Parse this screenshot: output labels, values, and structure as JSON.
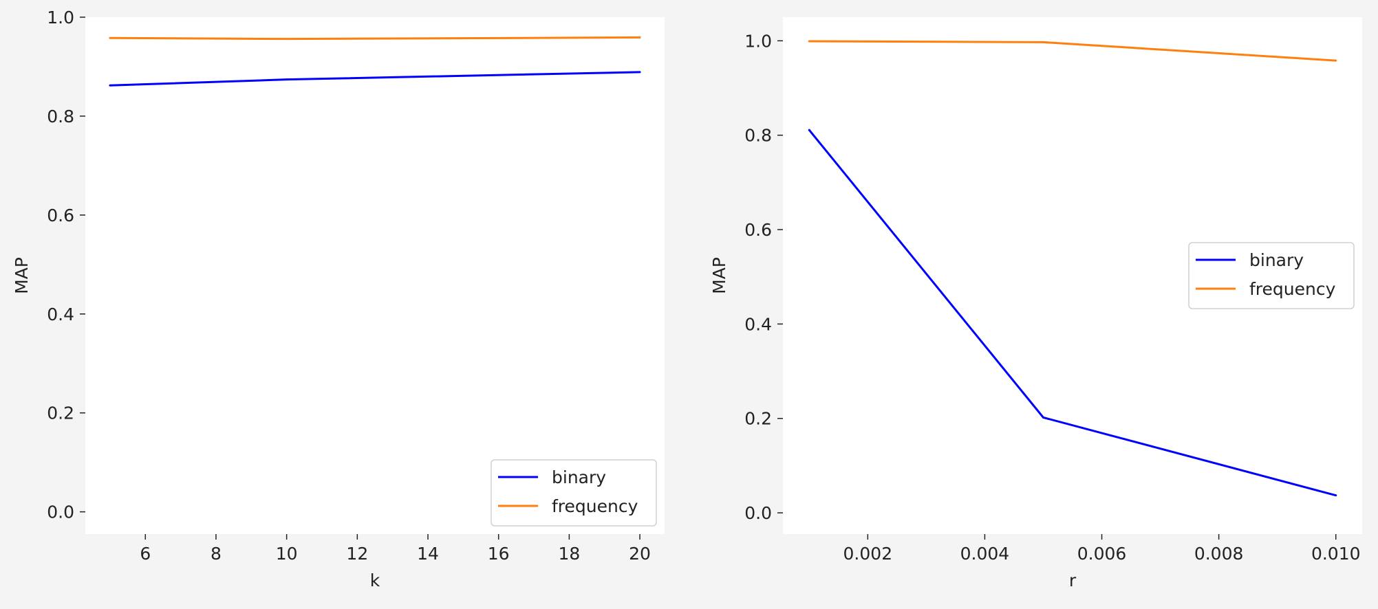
{
  "figure": {
    "background": "#f4f4f4",
    "plot_background": "#ffffff"
  },
  "chart_data": [
    {
      "type": "line",
      "xlabel": "k",
      "ylabel": "MAP",
      "xlim": [
        4.3,
        20.7
      ],
      "ylim": [
        -0.045,
        1.0
      ],
      "x": [
        5,
        10,
        20
      ],
      "xticks": [
        6,
        8,
        10,
        12,
        14,
        16,
        18,
        20
      ],
      "xtick_labels": [
        "6",
        "8",
        "10",
        "12",
        "14",
        "16",
        "18",
        "20"
      ],
      "yticks": [
        0.0,
        0.2,
        0.4,
        0.6,
        0.8,
        1.0
      ],
      "ytick_labels": [
        "0.0",
        "0.2",
        "0.4",
        "0.6",
        "0.8",
        "1.0"
      ],
      "grid": false,
      "legend": "lower right",
      "series": [
        {
          "name": "binary",
          "color": "#0000ff",
          "values": [
            0.862,
            0.874,
            0.889
          ]
        },
        {
          "name": "frequency",
          "color": "#ff7f0e",
          "values": [
            0.958,
            0.956,
            0.959
          ]
        }
      ]
    },
    {
      "type": "line",
      "xlabel": "r",
      "ylabel": "MAP",
      "xlim": [
        0.00055,
        0.01045
      ],
      "ylim": [
        -0.045,
        1.05
      ],
      "x": [
        0.001,
        0.005,
        0.01
      ],
      "xticks": [
        0.002,
        0.004,
        0.006,
        0.008,
        0.01
      ],
      "xtick_labels": [
        "0.002",
        "0.004",
        "0.006",
        "0.008",
        "0.010"
      ],
      "yticks": [
        0.0,
        0.2,
        0.4,
        0.6,
        0.8,
        1.0
      ],
      "ytick_labels": [
        "0.0",
        "0.2",
        "0.4",
        "0.6",
        "0.8",
        "1.0"
      ],
      "grid": false,
      "legend": "center right",
      "series": [
        {
          "name": "binary",
          "color": "#0000ff",
          "values": [
            0.811,
            0.202,
            0.037
          ]
        },
        {
          "name": "frequency",
          "color": "#ff7f0e",
          "values": [
            0.999,
            0.997,
            0.958
          ]
        }
      ]
    }
  ]
}
